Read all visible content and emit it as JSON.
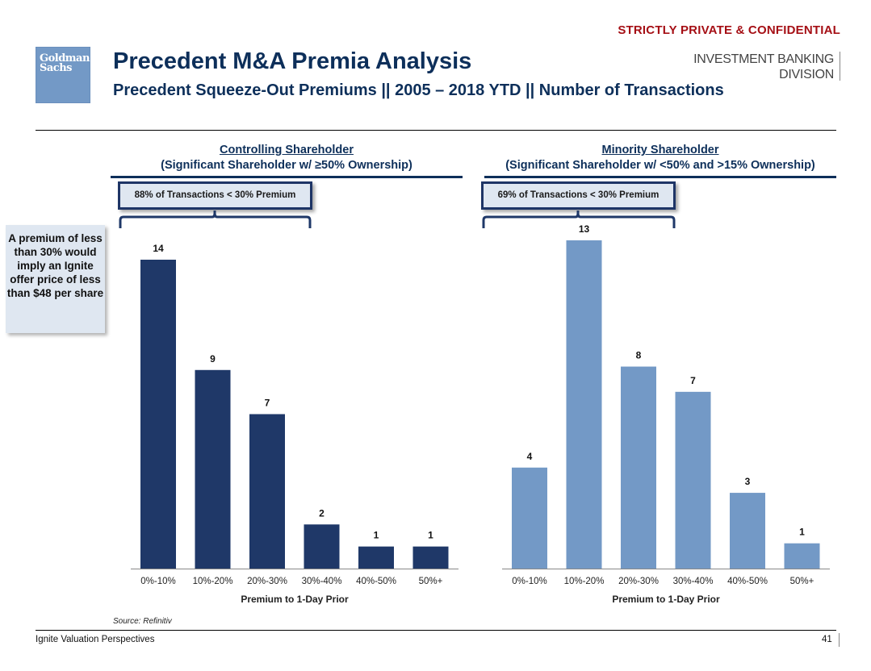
{
  "header": {
    "confidential": "STRICTLY PRIVATE & CONFIDENTIAL",
    "logo_line1": "Goldman",
    "logo_line2": "Sachs",
    "title": "Precedent M&A Premia Analysis",
    "subtitle": "Precedent Squeeze-Out Premiums || 2005 – 2018 YTD || Number of Transactions",
    "division_line1": "INVESTMENT BANKING",
    "division_line2": "DIVISION"
  },
  "panels": [
    {
      "heading": "Controlling Shareholder",
      "subheading": "(Significant Shareholder w/ ≥50% Ownership)",
      "callout": "88% of Transactions < 30% Premium"
    },
    {
      "heading": "Minority Shareholder",
      "subheading": "(Significant Shareholder w/ <50% and >15% Ownership)",
      "callout": "69% of Transactions < 30% Premium"
    }
  ],
  "side_note": "A premium of less than 30% would imply an Ignite offer price of less than $48 per share",
  "colors": {
    "navy": "#1f3868",
    "light_blue": "#7399c6",
    "title_blue": "#0d2f5a",
    "confidential_red": "#a50f15"
  },
  "chart_data": [
    {
      "type": "bar",
      "title": "Controlling Shareholder",
      "categories": [
        "0%-10%",
        "10%-20%",
        "20%-30%",
        "30%-40%",
        "40%-50%",
        "50%+"
      ],
      "values": [
        14,
        9,
        7,
        2,
        1,
        1
      ],
      "xlabel": "Premium to 1-Day Prior",
      "ylabel": "",
      "ylim": [
        0,
        14
      ],
      "grid": false,
      "data_labels": true,
      "color": "#1f3868"
    },
    {
      "type": "bar",
      "title": "Minority Shareholder",
      "categories": [
        "0%-10%",
        "10%-20%",
        "20%-30%",
        "30%-40%",
        "40%-50%",
        "50%+"
      ],
      "values": [
        4,
        13,
        8,
        7,
        3,
        1
      ],
      "xlabel": "Premium to 1-Day Prior",
      "ylabel": "",
      "ylim": [
        0,
        13
      ],
      "grid": false,
      "data_labels": true,
      "color": "#7399c6"
    }
  ],
  "footer": {
    "source": "Source: Refinitiv",
    "document": "Ignite Valuation Perspectives",
    "page": "41"
  }
}
